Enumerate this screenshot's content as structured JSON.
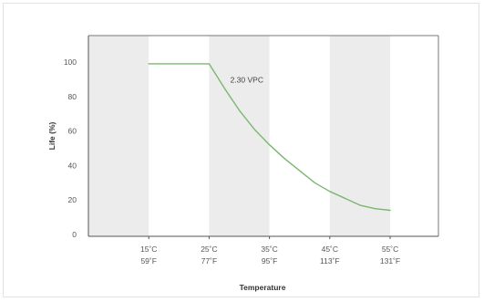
{
  "chart_data": {
    "type": "line",
    "xlabel": "Temperature",
    "ylabel": "Life (%)",
    "xlim": [
      5,
      63
    ],
    "ylim": [
      0,
      100
    ],
    "x_ticks": [
      {
        "value": 15,
        "label_c": "15˚C",
        "label_f": "59˚F"
      },
      {
        "value": 25,
        "label_c": "25˚C",
        "label_f": "77˚F"
      },
      {
        "value": 35,
        "label_c": "35˚C",
        "label_f": "95˚F"
      },
      {
        "value": 45,
        "label_c": "45˚C",
        "label_f": "113˚F"
      },
      {
        "value": 55,
        "label_c": "55˚C",
        "label_f": "131˚F"
      }
    ],
    "y_ticks": [
      0,
      20,
      40,
      60,
      80,
      100
    ],
    "shaded_bands": [
      [
        5,
        15
      ],
      [
        25,
        35
      ],
      [
        45,
        55
      ]
    ],
    "series": [
      {
        "name": "2.30 VPC",
        "color": "#7ab86f",
        "x": [
          15,
          25,
          27.5,
          30,
          32.5,
          35,
          37.5,
          40,
          42.5,
          45,
          47.5,
          50,
          52.5,
          55
        ],
        "y": [
          99,
          99,
          85,
          72,
          61,
          52,
          44,
          37,
          30,
          25,
          21,
          17,
          15,
          14
        ]
      }
    ],
    "annotations": [
      {
        "text": "2.30 VPC",
        "x": 28.5,
        "y": 88
      }
    ],
    "grid": false
  }
}
